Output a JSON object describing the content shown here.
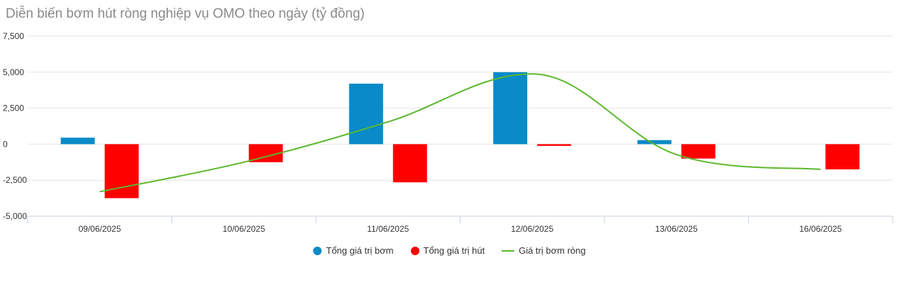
{
  "colors": {
    "inject": "#0a8ac8",
    "withdraw": "#ff0000",
    "net": "#5cb82e",
    "grid": "#e6e6e6",
    "axis": "#c9d3e3",
    "title": "#8a8a8a"
  },
  "chart_data": {
    "type": "bar",
    "title": "Diễn biến bơm hút ròng nghiệp vụ OMO theo ngày (tỷ đồng)",
    "categories": [
      "09/06/2025",
      "10/06/2025",
      "11/06/2025",
      "12/06/2025",
      "13/06/2025",
      "16/06/2025"
    ],
    "series": [
      {
        "name": "Tổng giá trị bơm",
        "type": "bar",
        "values": [
          450,
          0,
          4200,
          5000,
          280,
          0
        ]
      },
      {
        "name": "Tổng giá trị hút",
        "type": "bar",
        "values": [
          -3750,
          -1250,
          -2650,
          -120,
          -1000,
          -1750
        ]
      },
      {
        "name": "Giá trị bơm ròng",
        "type": "spline",
        "values": [
          -3300,
          -1250,
          1550,
          4880,
          -720,
          -1750
        ]
      }
    ],
    "ylim": [
      -5000,
      7500
    ],
    "yticks": [
      7500,
      5000,
      2500,
      0,
      -2500,
      -5000
    ],
    "ytick_labels": [
      "7,500",
      "5,000",
      "2,500",
      "0",
      "-2,500",
      "-5,000"
    ],
    "grid": true,
    "legend_position": "bottom-center"
  }
}
